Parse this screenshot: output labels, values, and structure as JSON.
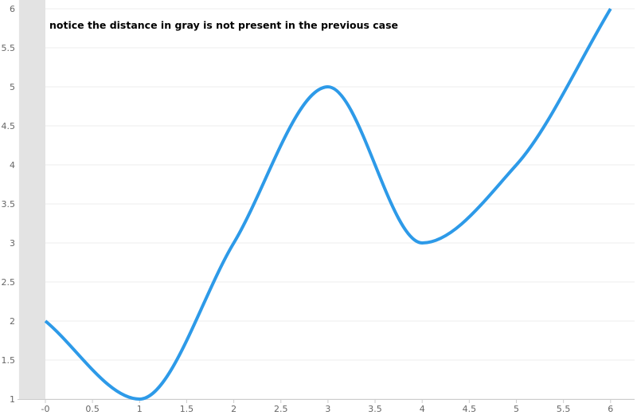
{
  "chart_data": {
    "type": "line",
    "title": "",
    "xlabel": "",
    "ylabel": "",
    "xlim": [
      -0.1,
      6.2
    ],
    "ylim": [
      1,
      6
    ],
    "grid": "horizontal",
    "x_ticks": [
      "-0",
      "0.5",
      "1",
      "1.5",
      "2",
      "2.5",
      "3",
      "3.5",
      "4",
      "4.5",
      "5",
      "5.5",
      "6"
    ],
    "y_ticks": [
      "1",
      "1.5",
      "2",
      "2.5",
      "3",
      "3.5",
      "4",
      "4.5",
      "5",
      "5.5",
      "6"
    ],
    "gray_band": [
      -0.28,
      0
    ],
    "annotation": "notice the distance in gray is not present in the previous case",
    "series": [
      {
        "color": "#2d9ae8",
        "x": [
          0,
          1,
          2,
          3,
          4,
          5,
          6
        ],
        "y": [
          2,
          1,
          3,
          5,
          3,
          4,
          6
        ]
      }
    ],
    "colors": {
      "line": "#2d9ae8",
      "band": "#e3e3e3",
      "grid": "#ececec",
      "axis": "#cccccc"
    }
  }
}
